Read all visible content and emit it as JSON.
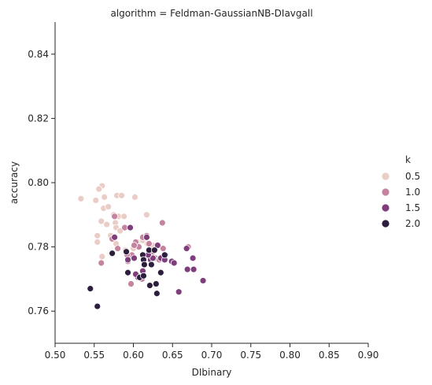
{
  "chart_data": {
    "type": "scatter",
    "title": "algorithm = Feldman-GaussianNB-DIavgall",
    "xlabel": "DIbinary",
    "ylabel": "accuracy",
    "xlim": [
      0.5,
      0.9
    ],
    "ylim": [
      0.75,
      0.85
    ],
    "xticks": [
      "0.50",
      "0.55",
      "0.60",
      "0.65",
      "0.70",
      "0.75",
      "0.80",
      "0.85",
      "0.90"
    ],
    "yticks": [
      "0.76",
      "0.78",
      "0.80",
      "0.82",
      "0.84"
    ],
    "grid": false,
    "legend": {
      "title": "k",
      "placement": "right",
      "entries": [
        {
          "label": "0.5",
          "color": "#ebcdc7"
        },
        {
          "label": "1.0",
          "color": "#c6839f"
        },
        {
          "label": "1.5",
          "color": "#7e3e7c"
        },
        {
          "label": "2.0",
          "color": "#2d1e3e"
        }
      ]
    },
    "series": [
      {
        "name": "0.5",
        "color": "#ebcdc7",
        "points": [
          [
            0.533,
            0.795
          ],
          [
            0.552,
            0.7945
          ],
          [
            0.56,
            0.799
          ],
          [
            0.556,
            0.798
          ],
          [
            0.563,
            0.7955
          ],
          [
            0.579,
            0.796
          ],
          [
            0.585,
            0.796
          ],
          [
            0.602,
            0.7955
          ],
          [
            0.562,
            0.792
          ],
          [
            0.568,
            0.7925
          ],
          [
            0.575,
            0.79
          ],
          [
            0.581,
            0.7895
          ],
          [
            0.588,
            0.7895
          ],
          [
            0.617,
            0.79
          ],
          [
            0.559,
            0.788
          ],
          [
            0.566,
            0.787
          ],
          [
            0.577,
            0.7875
          ],
          [
            0.554,
            0.7835
          ],
          [
            0.554,
            0.7815
          ],
          [
            0.578,
            0.786
          ],
          [
            0.583,
            0.785
          ],
          [
            0.571,
            0.7835
          ],
          [
            0.578,
            0.781
          ],
          [
            0.56,
            0.777
          ],
          [
            0.59,
            0.779
          ],
          [
            0.6,
            0.7795
          ],
          [
            0.605,
            0.7815
          ],
          [
            0.612,
            0.782
          ],
          [
            0.618,
            0.781
          ],
          [
            0.625,
            0.7805
          ],
          [
            0.593,
            0.776
          ],
          [
            0.63,
            0.7765
          ]
        ]
      },
      {
        "name": "1.0",
        "color": "#c6839f",
        "points": [
          [
            0.559,
            0.775
          ],
          [
            0.573,
            0.7825
          ],
          [
            0.576,
            0.7895
          ],
          [
            0.58,
            0.7795
          ],
          [
            0.589,
            0.786
          ],
          [
            0.593,
            0.7755
          ],
          [
            0.598,
            0.7775
          ],
          [
            0.603,
            0.7815
          ],
          [
            0.607,
            0.78
          ],
          [
            0.612,
            0.783
          ],
          [
            0.617,
            0.7835
          ],
          [
            0.622,
            0.776
          ],
          [
            0.628,
            0.7765
          ],
          [
            0.633,
            0.776
          ],
          [
            0.637,
            0.7875
          ],
          [
            0.638,
            0.7795
          ],
          [
            0.597,
            0.7685
          ],
          [
            0.604,
            0.771
          ],
          [
            0.611,
            0.77
          ],
          [
            0.62,
            0.781
          ],
          [
            0.625,
            0.7785
          ],
          [
            0.64,
            0.7775
          ],
          [
            0.601,
            0.7805
          ],
          [
            0.615,
            0.777
          ],
          [
            0.592,
            0.7775
          ],
          [
            0.668,
            0.7795
          ],
          [
            0.67,
            0.78
          ]
        ]
      },
      {
        "name": "1.5",
        "color": "#7e3e7c",
        "points": [
          [
            0.576,
            0.783
          ],
          [
            0.593,
            0.776
          ],
          [
            0.596,
            0.786
          ],
          [
            0.601,
            0.7765
          ],
          [
            0.606,
            0.7705
          ],
          [
            0.612,
            0.7725
          ],
          [
            0.617,
            0.783
          ],
          [
            0.622,
            0.776
          ],
          [
            0.625,
            0.7765
          ],
          [
            0.631,
            0.7805
          ],
          [
            0.635,
            0.7765
          ],
          [
            0.641,
            0.7775
          ],
          [
            0.649,
            0.7755
          ],
          [
            0.652,
            0.775
          ],
          [
            0.658,
            0.766
          ],
          [
            0.669,
            0.773
          ],
          [
            0.676,
            0.7765
          ],
          [
            0.677,
            0.773
          ],
          [
            0.689,
            0.7695
          ],
          [
            0.668,
            0.7795
          ],
          [
            0.603,
            0.7715
          ],
          [
            0.619,
            0.7775
          ],
          [
            0.64,
            0.776
          ]
        ]
      },
      {
        "name": "2.0",
        "color": "#2d1e3e",
        "points": [
          [
            0.545,
            0.767
          ],
          [
            0.554,
            0.7615
          ],
          [
            0.573,
            0.778
          ],
          [
            0.591,
            0.7785
          ],
          [
            0.593,
            0.772
          ],
          [
            0.608,
            0.7705
          ],
          [
            0.612,
            0.7775
          ],
          [
            0.613,
            0.776
          ],
          [
            0.614,
            0.7745
          ],
          [
            0.62,
            0.779
          ],
          [
            0.621,
            0.768
          ],
          [
            0.623,
            0.7745
          ],
          [
            0.627,
            0.779
          ],
          [
            0.629,
            0.7685
          ],
          [
            0.63,
            0.7655
          ],
          [
            0.635,
            0.772
          ],
          [
            0.64,
            0.7775
          ],
          [
            0.613,
            0.771
          ]
        ]
      }
    ]
  }
}
